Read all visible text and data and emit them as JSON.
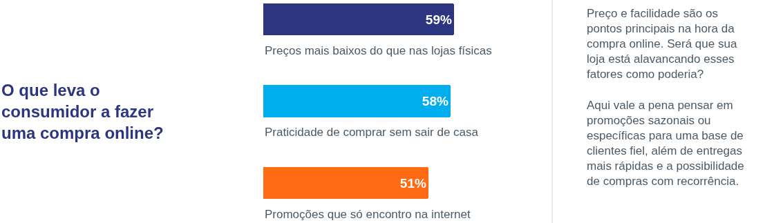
{
  "chart_data": {
    "type": "bar",
    "orientation": "horizontal",
    "title": "O que leva o\nconsumidor a fazer\numa compra online?",
    "categories": [
      "Preços mais baixos do que nas lojas físicas",
      "Praticidade de comprar sem sair de casa",
      "Promoções que só encontro na internet"
    ],
    "values": [
      59,
      58,
      51
    ],
    "colors": [
      "#2b3580",
      "#00adef",
      "#ff6a13"
    ],
    "value_labels": [
      "59%",
      "58%",
      "51%"
    ],
    "annotations": [
      "Preço e facilidade são os\npontos principais na hora da\ncompra online. Será que sua\nloja está alavancando esses\nfatores como poderia?\n\nAqui vale a pena pensar em\npromoções sazonais ou\nespecíficas para uma base de\nclientes fiel, além de entregas\nmais rápidas e a possibilidade\nde compras com recorrência."
    ]
  }
}
